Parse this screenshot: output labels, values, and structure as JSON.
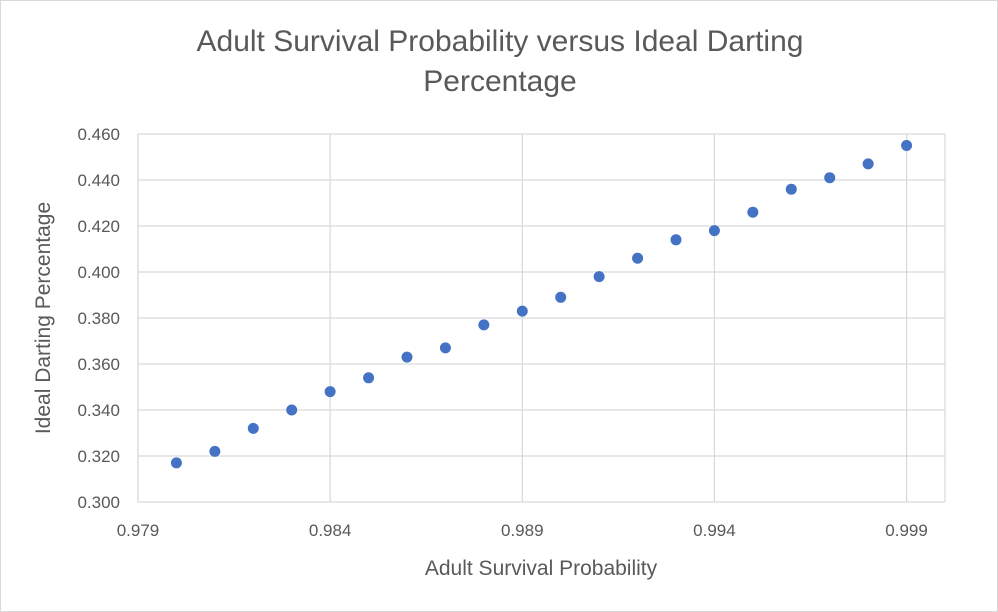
{
  "chart_data": {
    "type": "scatter",
    "title": "Adult Survival Probability versus Ideal Darting Percentage",
    "xlabel": "Adult Survival Probability",
    "ylabel": "Ideal Darting Percentage",
    "xlim": [
      0.979,
      1.0
    ],
    "ylim": [
      0.3,
      0.46
    ],
    "x_ticks": [
      "0.979",
      "0.984",
      "0.989",
      "0.994",
      "0.999"
    ],
    "y_ticks": [
      "0.300",
      "0.320",
      "0.340",
      "0.360",
      "0.380",
      "0.400",
      "0.420",
      "0.440",
      "0.460"
    ],
    "grid": true,
    "marker_color": "#4472C4",
    "points": [
      {
        "x": 0.98,
        "y": 0.317
      },
      {
        "x": 0.981,
        "y": 0.322
      },
      {
        "x": 0.982,
        "y": 0.332
      },
      {
        "x": 0.983,
        "y": 0.34
      },
      {
        "x": 0.984,
        "y": 0.348
      },
      {
        "x": 0.985,
        "y": 0.354
      },
      {
        "x": 0.986,
        "y": 0.363
      },
      {
        "x": 0.987,
        "y": 0.367
      },
      {
        "x": 0.988,
        "y": 0.377
      },
      {
        "x": 0.989,
        "y": 0.383
      },
      {
        "x": 0.99,
        "y": 0.389
      },
      {
        "x": 0.991,
        "y": 0.398
      },
      {
        "x": 0.992,
        "y": 0.406
      },
      {
        "x": 0.993,
        "y": 0.414
      },
      {
        "x": 0.994,
        "y": 0.418
      },
      {
        "x": 0.995,
        "y": 0.426
      },
      {
        "x": 0.996,
        "y": 0.436
      },
      {
        "x": 0.997,
        "y": 0.441
      },
      {
        "x": 0.998,
        "y": 0.447
      },
      {
        "x": 0.999,
        "y": 0.455
      }
    ]
  }
}
